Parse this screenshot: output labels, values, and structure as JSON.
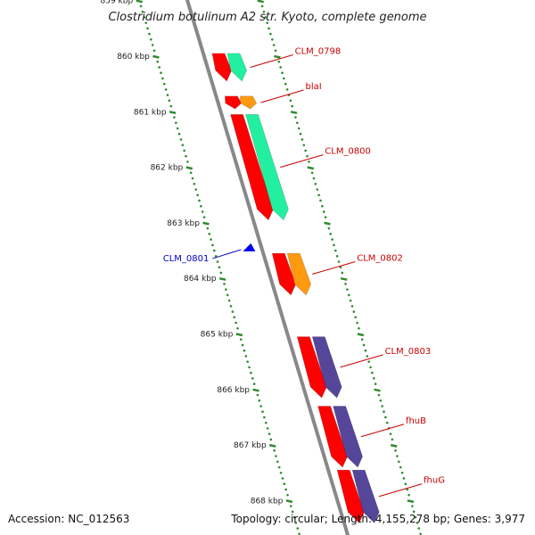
{
  "header": {
    "title": "Clostridium botulinum A2 str. Kyoto, complete genome"
  },
  "footer": {
    "accession": "Accession: NC_012563",
    "summary": "Topology: circular; Length: 4,155,278 bp; Genes: 3,977"
  },
  "colors": {
    "backbone": "#888888",
    "gene_red": "#ff0000",
    "cds_green": "#22f0a0",
    "cds_orange": "#ff9a10",
    "cds_purple": "#55469a",
    "reverse_blue": "#0000ee",
    "tick_green": "#2e8b2e",
    "label_red": "#cc0000",
    "label_blue": "#0000cc"
  },
  "scale": {
    "unit": "kbp",
    "ticks": [
      {
        "kbp": 859,
        "label": "859 kbp"
      },
      {
        "kbp": 860,
        "label": "860 kbp"
      },
      {
        "kbp": 861,
        "label": "861 kbp"
      },
      {
        "kbp": 862,
        "label": "862 kbp"
      },
      {
        "kbp": 863,
        "label": "863 kbp"
      },
      {
        "kbp": 864,
        "label": "864 kbp"
      },
      {
        "kbp": 865,
        "label": "865 kbp"
      },
      {
        "kbp": 866,
        "label": "866 kbp"
      },
      {
        "kbp": 867,
        "label": "867 kbp"
      },
      {
        "kbp": 868,
        "label": "868 kbp"
      }
    ]
  },
  "forward_genes": [
    {
      "name": "CLM_0798",
      "start_kbp": 859.95,
      "end_kbp": 860.45,
      "cds_color": "cds_green"
    },
    {
      "name": "blaI",
      "start_kbp": 860.72,
      "end_kbp": 860.95,
      "cds_color": "cds_orange"
    },
    {
      "name": "CLM_0800",
      "start_kbp": 861.05,
      "end_kbp": 862.95,
      "cds_color": "cds_green"
    },
    {
      "name": "CLM_0802",
      "start_kbp": 863.55,
      "end_kbp": 864.3,
      "cds_color": "cds_orange"
    },
    {
      "name": "CLM_0803",
      "start_kbp": 865.05,
      "end_kbp": 866.15,
      "cds_color": "cds_purple"
    },
    {
      "name": "fhuB",
      "start_kbp": 866.3,
      "end_kbp": 867.4,
      "cds_color": "cds_purple"
    },
    {
      "name": "fhuG",
      "start_kbp": 867.45,
      "end_kbp": 868.4,
      "cds_color": "cds_purple"
    }
  ],
  "reverse_genes": [
    {
      "name": "CLM_0801",
      "start_kbp": 863.4,
      "end_kbp": 863.5
    }
  ]
}
